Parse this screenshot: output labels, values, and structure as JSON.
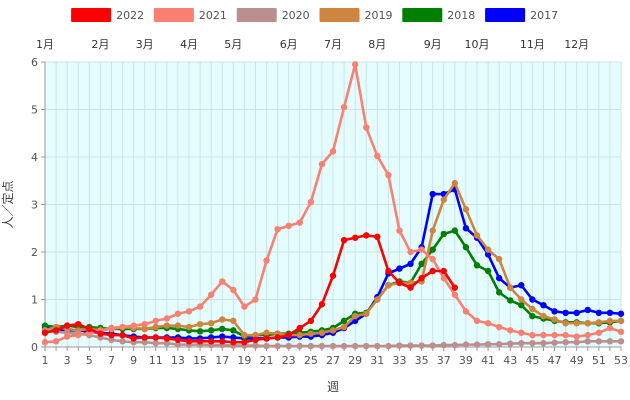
{
  "chart_data": {
    "type": "line",
    "title": "",
    "xlabel": "週",
    "ylabel": "人／定点",
    "xlim": [
      1,
      53
    ],
    "ylim": [
      0,
      6
    ],
    "x_ticks": [
      1,
      3,
      5,
      7,
      9,
      11,
      13,
      15,
      17,
      19,
      21,
      23,
      25,
      27,
      29,
      31,
      33,
      35,
      37,
      39,
      41,
      43,
      45,
      47,
      49,
      51,
      53
    ],
    "y_ticks": [
      0,
      1,
      2,
      3,
      4,
      5,
      6
    ],
    "months": [
      {
        "label": "1月",
        "week": 1
      },
      {
        "label": "2月",
        "week": 6
      },
      {
        "label": "3月",
        "week": 10
      },
      {
        "label": "4月",
        "week": 14
      },
      {
        "label": "5月",
        "week": 18
      },
      {
        "label": "6月",
        "week": 23
      },
      {
        "label": "7月",
        "week": 27
      },
      {
        "label": "8月",
        "week": 31
      },
      {
        "label": "9月",
        "week": 36
      },
      {
        "label": "10月",
        "week": 40
      },
      {
        "label": "11月",
        "week": 45
      },
      {
        "label": "12月",
        "week": 49
      }
    ],
    "grid": true,
    "legend_position": "top",
    "background_color": "#e6fdff",
    "series": [
      {
        "name": "2022",
        "color": "#ff0000",
        "values": [
          0.3,
          0.35,
          0.45,
          0.48,
          0.38,
          0.28,
          0.25,
          0.25,
          0.18,
          0.2,
          0.2,
          0.18,
          0.15,
          0.12,
          0.12,
          0.12,
          0.12,
          0.1,
          0.1,
          0.15,
          0.18,
          0.2,
          0.25,
          0.4,
          0.55,
          0.9,
          1.5,
          2.25,
          2.3,
          2.35,
          2.32,
          1.6,
          1.35,
          1.25,
          1.45,
          1.6,
          1.6,
          1.25
        ]
      },
      {
        "name": "2021",
        "color": "#fa8072",
        "values": [
          0.1,
          0.12,
          0.22,
          0.25,
          0.3,
          0.35,
          0.38,
          0.42,
          0.45,
          0.48,
          0.55,
          0.6,
          0.7,
          0.75,
          0.85,
          1.1,
          1.38,
          1.2,
          0.85,
          1.0,
          1.82,
          2.48,
          2.55,
          2.62,
          3.05,
          3.85,
          4.12,
          5.05,
          5.95,
          4.62,
          4.02,
          3.62,
          2.45,
          2.0,
          2.05,
          1.85,
          1.45,
          1.1,
          0.75,
          0.55,
          0.5,
          0.42,
          0.35,
          0.3,
          0.25,
          0.25,
          0.25,
          0.25,
          0.22,
          0.25,
          0.3,
          0.4,
          0.32
        ]
      },
      {
        "name": "2020",
        "color": "#bc8f8f",
        "values": [
          0.35,
          0.32,
          0.3,
          0.28,
          0.25,
          0.2,
          0.15,
          0.12,
          0.1,
          0.1,
          0.08,
          0.08,
          0.05,
          0.05,
          0.05,
          0.04,
          0.04,
          0.03,
          0.03,
          0.03,
          0.02,
          0.02,
          0.02,
          0.02,
          0.02,
          0.02,
          0.02,
          0.02,
          0.02,
          0.02,
          0.02,
          0.02,
          0.03,
          0.03,
          0.03,
          0.03,
          0.04,
          0.04,
          0.05,
          0.05,
          0.06,
          0.06,
          0.07,
          0.08,
          0.08,
          0.08,
          0.09,
          0.1,
          0.1,
          0.12,
          0.12,
          0.12,
          0.12
        ]
      },
      {
        "name": "2019",
        "color": "#cd853f",
        "values": [
          0.35,
          0.42,
          0.38,
          0.35,
          0.38,
          0.35,
          0.4,
          0.42,
          0.4,
          0.38,
          0.42,
          0.45,
          0.45,
          0.42,
          0.48,
          0.5,
          0.58,
          0.55,
          0.25,
          0.25,
          0.3,
          0.28,
          0.25,
          0.25,
          0.28,
          0.3,
          0.35,
          0.42,
          0.65,
          0.7,
          1.0,
          1.3,
          1.35,
          1.35,
          1.38,
          2.45,
          3.1,
          3.45,
          2.9,
          2.35,
          2.05,
          1.85,
          1.25,
          1.0,
          0.8,
          0.65,
          0.58,
          0.5,
          0.5,
          0.5,
          0.52,
          0.55,
          0.55
        ]
      },
      {
        "name": "2018",
        "color": "#008000",
        "values": [
          0.45,
          0.42,
          0.45,
          0.42,
          0.42,
          0.4,
          0.38,
          0.38,
          0.38,
          0.38,
          0.4,
          0.4,
          0.38,
          0.35,
          0.33,
          0.35,
          0.38,
          0.35,
          0.22,
          0.25,
          0.25,
          0.28,
          0.28,
          0.3,
          0.32,
          0.35,
          0.4,
          0.55,
          0.7,
          0.72,
          1.0,
          1.3,
          1.38,
          1.35,
          1.75,
          2.05,
          2.38,
          2.45,
          2.1,
          1.72,
          1.6,
          1.15,
          0.98,
          0.88,
          0.65,
          0.6,
          0.55,
          0.52,
          0.52,
          0.5,
          0.5,
          0.52,
          0.55
        ]
      },
      {
        "name": "2017",
        "color": "#0000ff",
        "values": [
          0.4,
          0.38,
          0.35,
          0.35,
          0.32,
          0.3,
          0.28,
          0.25,
          0.22,
          0.2,
          0.2,
          0.2,
          0.2,
          0.18,
          0.18,
          0.2,
          0.22,
          0.2,
          0.18,
          0.18,
          0.18,
          0.2,
          0.2,
          0.22,
          0.22,
          0.25,
          0.3,
          0.4,
          0.55,
          0.7,
          1.05,
          1.55,
          1.65,
          1.75,
          2.1,
          3.22,
          3.22,
          3.32,
          2.5,
          2.3,
          1.95,
          1.45,
          1.25,
          1.3,
          1.0,
          0.88,
          0.75,
          0.72,
          0.72,
          0.78,
          0.72,
          0.72,
          0.7
        ]
      }
    ]
  }
}
